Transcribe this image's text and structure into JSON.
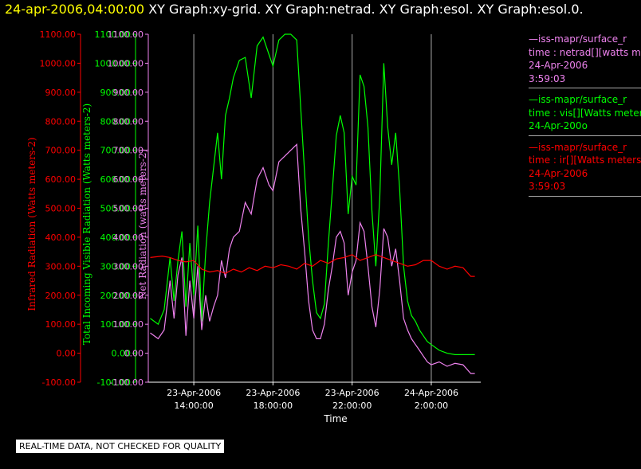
{
  "header": {
    "timestamp": "24-apr-2006,04:00:00",
    "graphs": "XY Graph:xy-grid.  XY Graph:netrad.  XY Graph:esol.  XY Graph:esol.0."
  },
  "colors": {
    "ir": "#ff0000",
    "vis": "#00ff00",
    "net": "#ee82ee",
    "grid": "#aaaaaa",
    "axis": "#ffffff"
  },
  "legend": [
    {
      "line1": "—iss-mapr/surface_r",
      "line2": "time : netrad[][watts m",
      "line3": "24-Apr-2006",
      "line4": "3:59:03",
      "color": "#ee82ee"
    },
    {
      "line1": "—iss-mapr/surface_r",
      "line2": "time : vis[][Watts meter",
      "line3": "24-Apr-200o",
      "line4": "",
      "color": "#00ff00"
    },
    {
      "line1": "—iss-mapr/surface_r",
      "line2": "time : ir[][Watts meters",
      "line3": "24-Apr-2006",
      "line4": "3:59:03",
      "color": "#ff0000"
    }
  ],
  "footer_note": "REAL-TIME DATA, NOT CHECKED FOR QUALITY",
  "chart_data": {
    "type": "line",
    "title": "",
    "xlabel": "Time",
    "xlim_hours": [
      11.7,
      28.5
    ],
    "x_ticks": [
      {
        "hour": 14,
        "line1": "23-Apr-2006",
        "line2": "14:00:00"
      },
      {
        "hour": 18,
        "line1": "23-Apr-2006",
        "line2": "18:00:00"
      },
      {
        "hour": 22,
        "line1": "23-Apr-2006",
        "line2": "22:00:00"
      },
      {
        "hour": 26,
        "line1": "24-Apr-2006",
        "line2": "2:00:00"
      }
    ],
    "axes": [
      {
        "id": "ir",
        "label": "Infrared Radiation (Watts meters-2)",
        "color": "#ff0000",
        "ylim": [
          -100,
          1100
        ]
      },
      {
        "id": "vis",
        "label": "Total Incoming Visible Radiation (Watts meters-2)",
        "color": "#00ff00",
        "ylim": [
          -100,
          1100
        ]
      },
      {
        "id": "net",
        "label": "Net Radiation (watts meters-2)",
        "color": "#ee82ee",
        "ylim": [
          -100,
          1100
        ]
      }
    ],
    "y_ticks": [
      "1100.00",
      "1000.00",
      "900.00",
      "800.00",
      "700.00",
      "600.00",
      "500.00",
      "400.00",
      "300.00",
      "200.00",
      "100.00",
      "0.00",
      "-100.00"
    ],
    "grid": true,
    "series": [
      {
        "axis": "vis",
        "x": [
          11.8,
          12.2,
          12.5,
          12.8,
          13.0,
          13.2,
          13.4,
          13.6,
          13.8,
          14.0,
          14.2,
          14.4,
          14.6,
          14.8,
          15.0,
          15.2,
          15.4,
          15.6,
          15.8,
          16.0,
          16.3,
          16.6,
          16.9,
          17.2,
          17.5,
          17.8,
          18.0,
          18.3,
          18.6,
          18.9,
          19.2,
          19.4,
          19.6,
          19.8,
          20.0,
          20.2,
          20.4,
          20.6,
          20.8,
          21.0,
          21.2,
          21.4,
          21.6,
          21.8,
          22.0,
          22.2,
          22.4,
          22.6,
          22.8,
          23.0,
          23.2,
          23.4,
          23.6,
          23.8,
          24.0,
          24.2,
          24.4,
          24.6,
          24.8,
          25.0,
          25.2,
          25.4,
          25.6,
          25.8,
          26.0,
          26.4,
          26.8,
          27.2,
          27.6,
          28.0,
          28.2
        ],
        "y": [
          120,
          100,
          150,
          330,
          180,
          320,
          420,
          160,
          380,
          200,
          440,
          110,
          350,
          520,
          640,
          760,
          600,
          820,
          880,
          950,
          1010,
          1020,
          880,
          1060,
          1090,
          1030,
          990,
          1080,
          1100,
          1100,
          1080,
          850,
          620,
          400,
          250,
          140,
          120,
          170,
          380,
          560,
          750,
          820,
          760,
          480,
          610,
          580,
          960,
          920,
          780,
          490,
          300,
          540,
          1000,
          780,
          650,
          760,
          570,
          300,
          180,
          130,
          110,
          80,
          60,
          40,
          30,
          10,
          0,
          -5,
          -5,
          -5,
          -5
        ]
      },
      {
        "axis": "net",
        "x": [
          11.8,
          12.2,
          12.5,
          12.8,
          13.0,
          13.2,
          13.4,
          13.6,
          13.8,
          14.0,
          14.2,
          14.4,
          14.6,
          14.8,
          15.0,
          15.2,
          15.4,
          15.6,
          15.8,
          16.0,
          16.3,
          16.6,
          16.9,
          17.2,
          17.5,
          17.8,
          18.0,
          18.3,
          18.6,
          18.9,
          19.2,
          19.4,
          19.6,
          19.8,
          20.0,
          20.2,
          20.4,
          20.6,
          20.8,
          21.0,
          21.2,
          21.4,
          21.6,
          21.8,
          22.0,
          22.2,
          22.4,
          22.6,
          22.8,
          23.0,
          23.2,
          23.4,
          23.6,
          23.8,
          24.0,
          24.2,
          24.4,
          24.6,
          24.8,
          25.0,
          25.2,
          25.4,
          25.6,
          25.8,
          26.0,
          26.4,
          26.8,
          27.2,
          27.6,
          28.0,
          28.2
        ],
        "y": [
          70,
          50,
          80,
          250,
          120,
          270,
          330,
          60,
          250,
          120,
          300,
          80,
          200,
          110,
          160,
          200,
          320,
          260,
          360,
          400,
          420,
          520,
          480,
          600,
          640,
          580,
          560,
          660,
          680,
          700,
          720,
          500,
          350,
          180,
          80,
          50,
          50,
          100,
          220,
          300,
          400,
          420,
          380,
          200,
          280,
          320,
          450,
          420,
          300,
          160,
          90,
          220,
          430,
          400,
          300,
          360,
          250,
          120,
          80,
          50,
          30,
          10,
          -10,
          -30,
          -40,
          -30,
          -45,
          -35,
          -40,
          -70,
          -70
        ]
      },
      {
        "axis": "ir",
        "x": [
          11.8,
          12.4,
          12.8,
          13.2,
          13.6,
          14.0,
          14.4,
          14.8,
          15.2,
          15.6,
          16.0,
          16.4,
          16.8,
          17.2,
          17.6,
          18.0,
          18.4,
          18.8,
          19.2,
          19.6,
          20.0,
          20.4,
          20.8,
          21.2,
          21.6,
          22.0,
          22.4,
          22.8,
          23.2,
          23.6,
          24.0,
          24.4,
          24.8,
          25.2,
          25.6,
          26.0,
          26.4,
          26.8,
          27.2,
          27.6,
          28.0,
          28.2
        ],
        "y": [
          330,
          335,
          330,
          320,
          315,
          320,
          290,
          280,
          285,
          275,
          290,
          280,
          295,
          285,
          300,
          295,
          305,
          300,
          290,
          310,
          300,
          320,
          310,
          325,
          330,
          340,
          320,
          330,
          340,
          330,
          320,
          310,
          300,
          305,
          320,
          320,
          300,
          290,
          300,
          295,
          265,
          265
        ]
      }
    ]
  }
}
